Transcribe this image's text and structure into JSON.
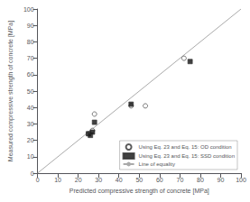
{
  "chart_data": {
    "type": "scatter",
    "xlabel": "Predicted compressive strength of concrete [MPa]",
    "ylabel": "Measured compressive strength of concrete [MPa]",
    "xlim": [
      0,
      100
    ],
    "ylim": [
      0,
      100
    ],
    "xticks": [
      0,
      10,
      20,
      30,
      40,
      50,
      60,
      70,
      80,
      90,
      100
    ],
    "yticks": [
      0,
      10,
      20,
      30,
      40,
      50,
      60,
      70,
      80,
      90,
      100
    ],
    "grid": false,
    "legend": "lower right",
    "series": [
      {
        "name": "Using Eq. 23 and Eq. 15: OD condition",
        "type": "scatter",
        "marker": "circle",
        "color": "white",
        "x": [
          25,
          27,
          28,
          46,
          53,
          72
        ],
        "values": [
          24,
          26,
          36,
          41,
          41,
          70
        ]
      },
      {
        "name": "Using Eq. 23 and Eq. 15: SSD condition",
        "type": "scatter",
        "marker": "square",
        "color": "#111111",
        "x": [
          25,
          26,
          27,
          28,
          46,
          75
        ],
        "values": [
          24,
          23,
          25,
          31,
          42,
          68
        ]
      },
      {
        "name": "Line of equality",
        "type": "line",
        "color": "#aaaaaa",
        "x": [
          0,
          100
        ],
        "values": [
          0,
          100
        ]
      }
    ]
  }
}
